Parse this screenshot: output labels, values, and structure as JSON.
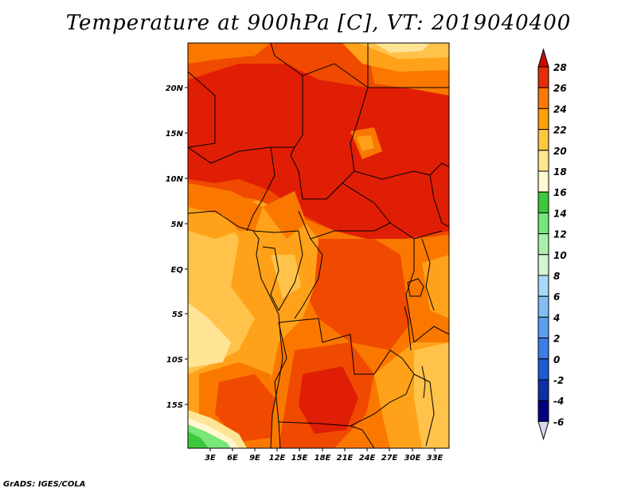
{
  "title": "Temperature at 900hPa [C], VT: 2019040400",
  "credit": "GrADS: IGES/COLA",
  "map": {
    "lat_labels": [
      "20N",
      "15N",
      "10N",
      "5N",
      "EQ",
      "5S",
      "10S",
      "15S"
    ],
    "lon_labels": [
      "3E",
      "6E",
      "9E",
      "12E",
      "15E",
      "18E",
      "21E",
      "24E",
      "27E",
      "30E",
      "33E"
    ]
  },
  "colorbar": {
    "levels": [
      "28",
      "26",
      "24",
      "22",
      "20",
      "18",
      "16",
      "14",
      "12",
      "10",
      "8",
      "6",
      "4",
      "2",
      "0",
      "-2",
      "-4",
      "-6"
    ],
    "colors": [
      "#d8d8f0",
      "#00007f",
      "#1030a8",
      "#1e5ad2",
      "#3c7ee6",
      "#5a9ef0",
      "#82bef5",
      "#aad8fa",
      "#d4f4d4",
      "#aaf0aa",
      "#78e678",
      "#3cc83c",
      "#fffad2",
      "#ffe68c",
      "#ffc83c",
      "#ffa000",
      "#ff7800",
      "#e62d0a",
      "#c80a00"
    ]
  },
  "colors": {
    "c28": "#e01e06",
    "c26": "#f04a00",
    "c24": "#fa7800",
    "c22": "#ffa21a",
    "c20": "#ffc24a",
    "c18": "#ffe496",
    "c16": "#fff8d0",
    "green": "#78e678",
    "dgreen": "#3cc83c"
  }
}
